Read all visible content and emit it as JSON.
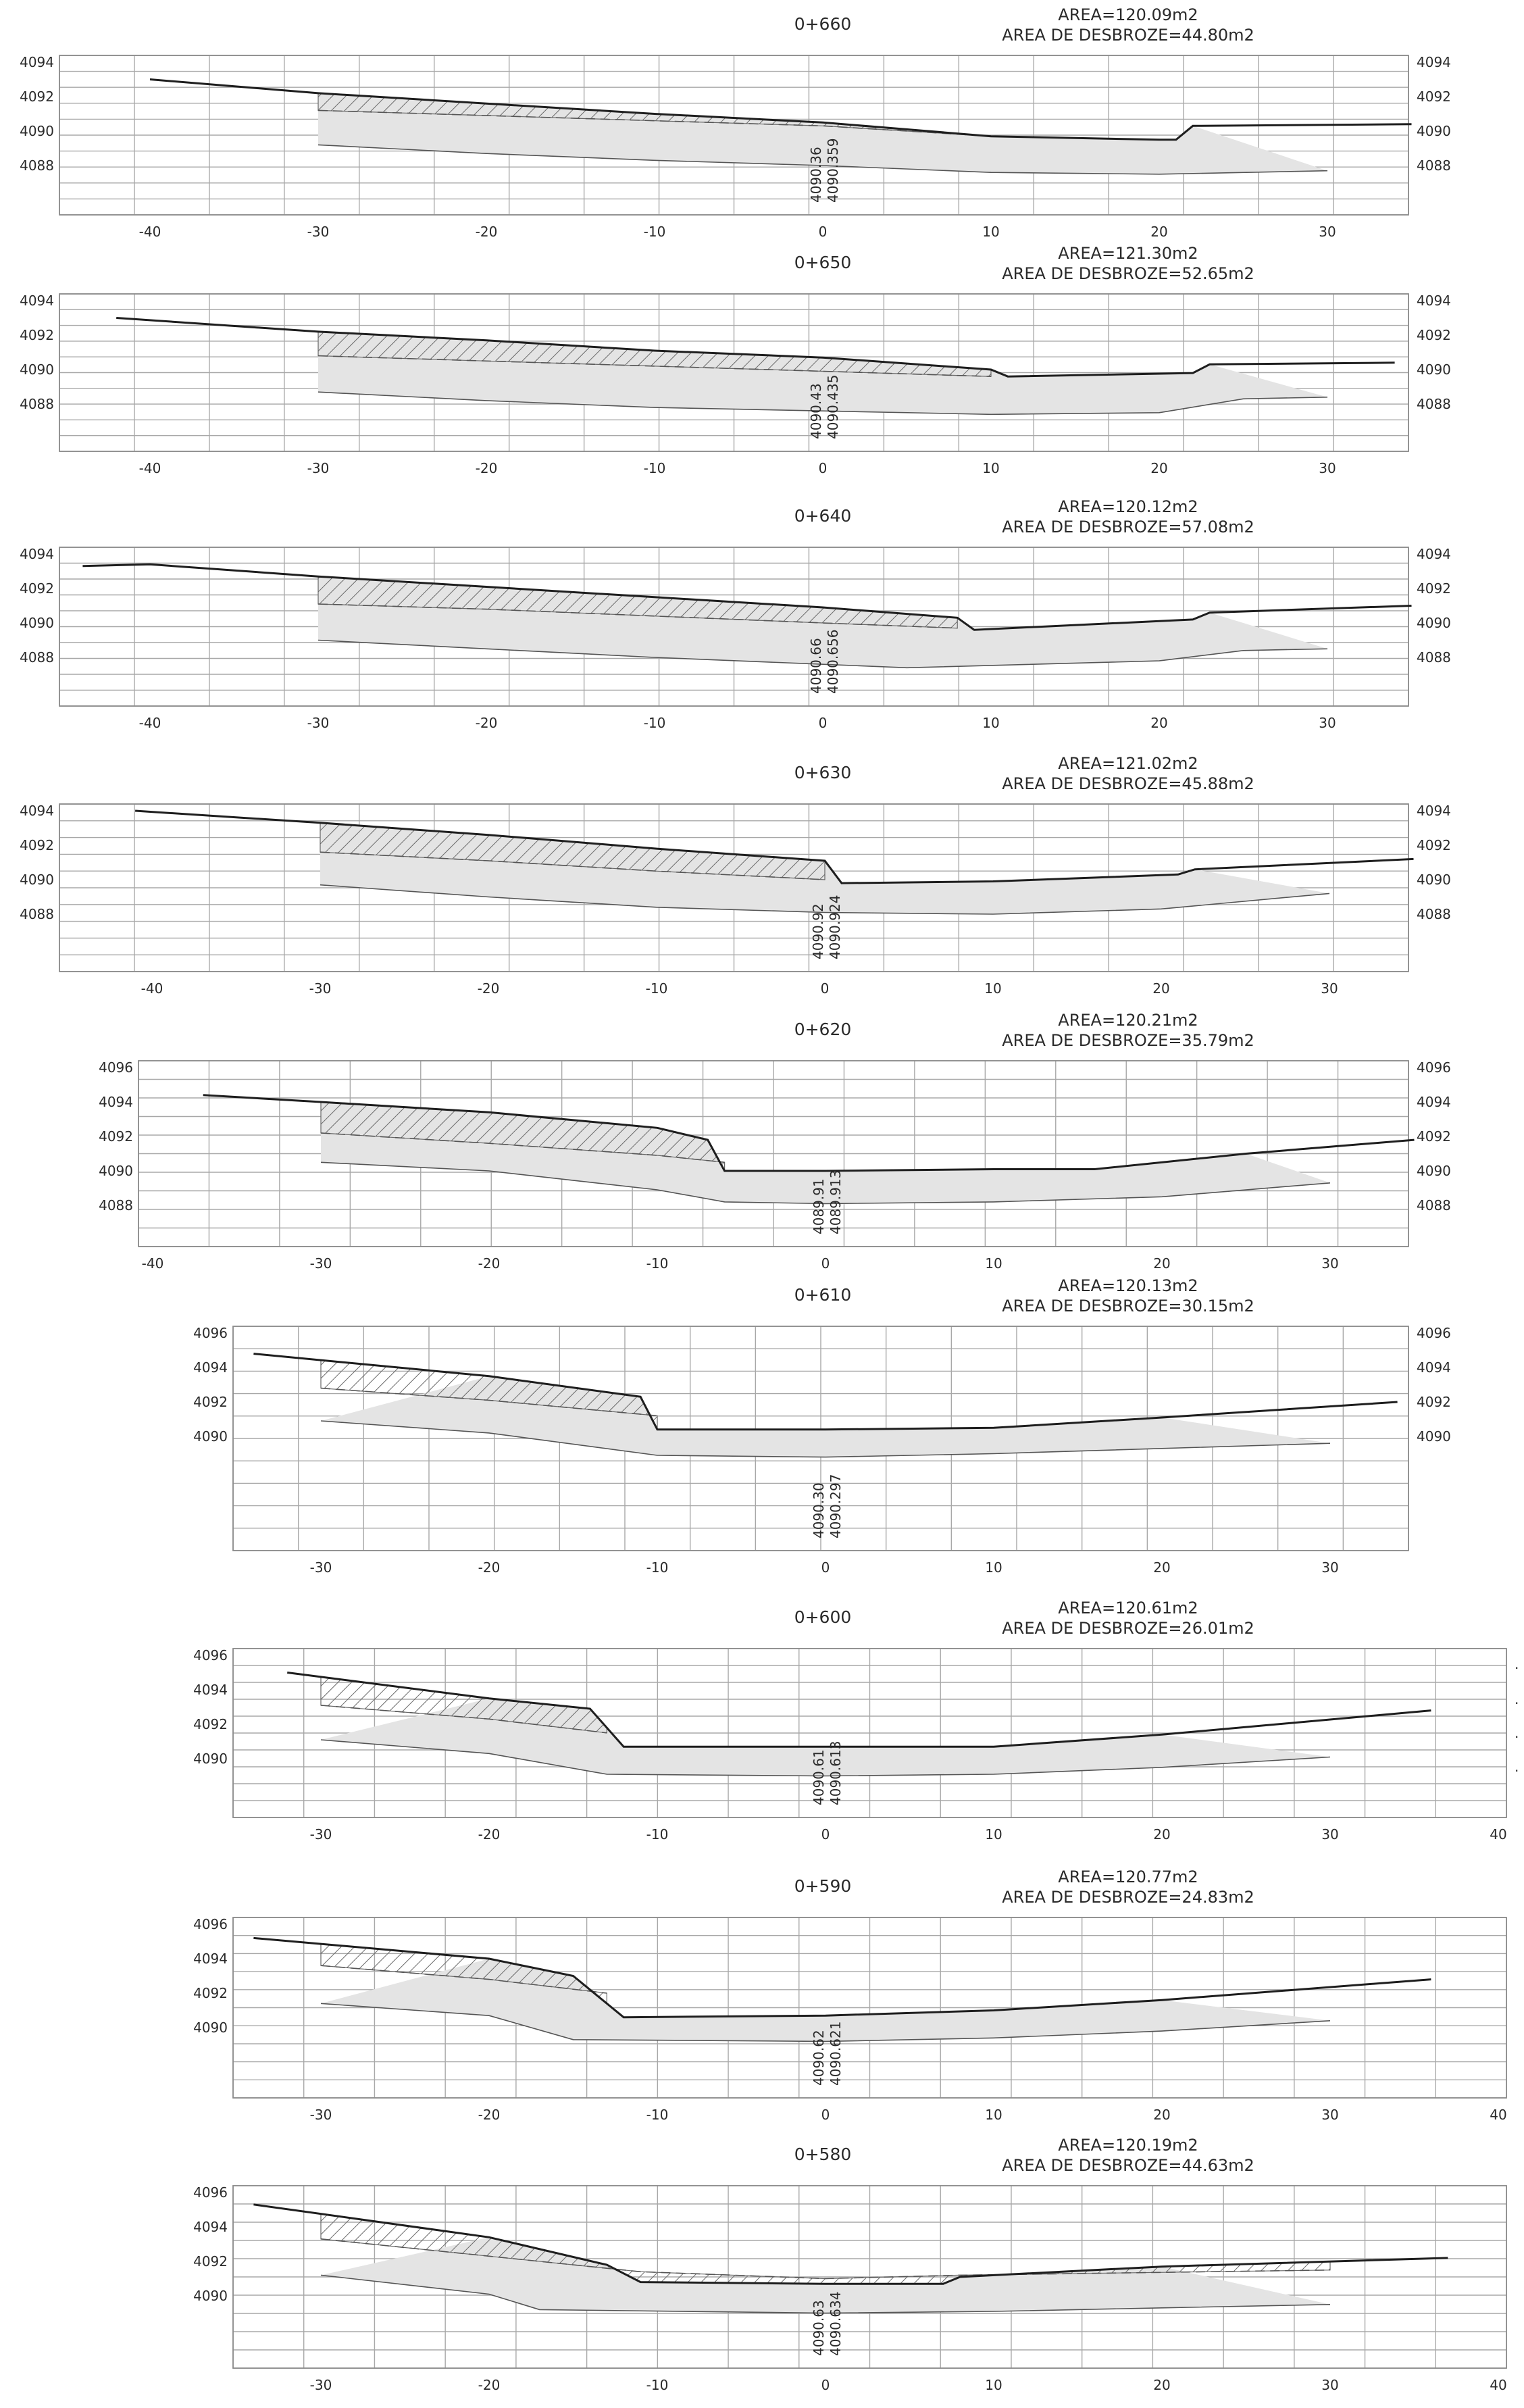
{
  "sections": [
    {
      "station": "0+660",
      "area": "AREA=120.09m2",
      "desbroze": "AREA DE DESBROZE=44.80m2",
      "xmin": -40,
      "ylabels": [
        "4094",
        "4092",
        "4090",
        "4088"
      ],
      "rlabels": [
        "4094",
        "4092",
        "4090",
        "4088"
      ],
      "xticks": [
        "-40",
        "-30",
        "-20",
        "-10",
        "0",
        "10",
        "20",
        "30"
      ],
      "elev1": "4090.36",
      "elev2": "4090.359",
      "ground": [
        [
          -40,
          4093
        ],
        [
          -30,
          4092.2
        ],
        [
          -20,
          4091.6
        ],
        [
          -10,
          4091
        ],
        [
          0,
          4090.5
        ],
        [
          10,
          4089.7
        ],
        [
          20,
          4089.5
        ],
        [
          21,
          4089.5
        ],
        [
          22,
          4090.3
        ],
        [
          35,
          4090.4
        ]
      ],
      "subgrade": [
        [
          -30,
          4089.2
        ],
        [
          -20,
          4088.7
        ],
        [
          -10,
          4088.3
        ],
        [
          0,
          4088
        ],
        [
          10,
          4087.6
        ],
        [
          20,
          4087.5
        ],
        [
          30,
          4087.7
        ]
      ],
      "cut": [
        [
          -30,
          4091.2
        ],
        [
          -20,
          4090.9
        ],
        [
          -10,
          4090.6
        ],
        [
          0,
          4090.3
        ],
        [
          10,
          4089.7
        ]
      ]
    },
    {
      "station": "0+650",
      "area": "AREA=121.30m2",
      "desbroze": "AREA DE DESBROZE=52.65m2",
      "xmin": -42,
      "ylabels": [
        "4094",
        "4092",
        "4090",
        "4088"
      ],
      "rlabels": [
        "4094",
        "4092",
        "4090",
        "4088"
      ],
      "xticks": [
        "-40",
        "-30",
        "-20",
        "-10",
        "0",
        "10",
        "20",
        "30"
      ],
      "elev1": "4090.43",
      "elev2": "4090.435",
      "ground": [
        [
          -42,
          4093
        ],
        [
          -30,
          4092.2
        ],
        [
          -20,
          4091.7
        ],
        [
          -10,
          4091.1
        ],
        [
          0,
          4090.7
        ],
        [
          10,
          4090
        ],
        [
          11,
          4089.6
        ],
        [
          22,
          4089.8
        ],
        [
          23,
          4090.3
        ],
        [
          34,
          4090.4
        ]
      ],
      "subgrade": [
        [
          -30,
          4088.7
        ],
        [
          -20,
          4088.2
        ],
        [
          -10,
          4087.8
        ],
        [
          0,
          4087.6
        ],
        [
          10,
          4087.4
        ],
        [
          20,
          4087.5
        ],
        [
          25,
          4088.3
        ],
        [
          30,
          4088.4
        ]
      ],
      "cut": [
        [
          -30,
          4090.8
        ],
        [
          -20,
          4090.5
        ],
        [
          -10,
          4090.2
        ],
        [
          0,
          4089.9
        ],
        [
          10,
          4089.6
        ]
      ]
    },
    {
      "station": "0+640",
      "area": "AREA=120.12m2",
      "desbroze": "AREA DE DESBROZE=57.08m2",
      "xmin": -44,
      "ylabels": [
        "4094",
        "4092",
        "4090",
        "4088"
      ],
      "rlabels": [
        "4094",
        "4092",
        "4090",
        "4088"
      ],
      "xticks": [
        "-40",
        "-30",
        "-20",
        "-10",
        "0",
        "10",
        "20",
        "30"
      ],
      "elev1": "4090.66",
      "elev2": "4090.656",
      "ground": [
        [
          -44,
          4093.3
        ],
        [
          -40,
          4093.4
        ],
        [
          -30,
          4092.7
        ],
        [
          -20,
          4092.1
        ],
        [
          -10,
          4091.5
        ],
        [
          0,
          4090.9
        ],
        [
          8,
          4090.3
        ],
        [
          9,
          4089.6
        ],
        [
          22,
          4090.2
        ],
        [
          23,
          4090.6
        ],
        [
          35,
          4091
        ]
      ],
      "subgrade": [
        [
          -30,
          4089
        ],
        [
          -20,
          4088.5
        ],
        [
          -10,
          4088
        ],
        [
          0,
          4087.6
        ],
        [
          5,
          4087.4
        ],
        [
          20,
          4087.8
        ],
        [
          25,
          4088.4
        ],
        [
          30,
          4088.5
        ]
      ],
      "cut": [
        [
          -30,
          4091.1
        ],
        [
          -20,
          4090.8
        ],
        [
          -10,
          4090.4
        ],
        [
          0,
          4090
        ],
        [
          8,
          4089.7
        ]
      ]
    },
    {
      "station": "0+630",
      "area": "AREA=121.02m2",
      "desbroze": "AREA DE DESBROZE=45.88m2",
      "xmin": -44,
      "ylabels": [
        "4094",
        "4092",
        "4090",
        "4088"
      ],
      "rlabels": [
        "4094",
        "4092",
        "4090",
        "4088"
      ],
      "xticks": [
        "-40",
        "-30",
        "-20",
        "-10",
        "0",
        "10",
        "20",
        "30"
      ],
      "elev1": "4090.92",
      "elev2": "4090.924",
      "ground": [
        [
          -41,
          4094
        ],
        [
          -30,
          4093.3
        ],
        [
          -20,
          4092.6
        ],
        [
          -10,
          4091.8
        ],
        [
          0,
          4091.1
        ],
        [
          1,
          4089.8
        ],
        [
          10,
          4089.9
        ],
        [
          21,
          4090.3
        ],
        [
          22,
          4090.6
        ],
        [
          35,
          4091.2
        ]
      ],
      "subgrade": [
        [
          -30,
          4089.7
        ],
        [
          -20,
          4089
        ],
        [
          -10,
          4088.4
        ],
        [
          0,
          4088.1
        ],
        [
          10,
          4088
        ],
        [
          20,
          4088.3
        ],
        [
          30,
          4089.2
        ]
      ],
      "cut": [
        [
          -30,
          4091.6
        ],
        [
          -20,
          4091.1
        ],
        [
          -10,
          4090.5
        ],
        [
          0,
          4090
        ]
      ]
    },
    {
      "station": "0+620",
      "area": "AREA=120.21m2",
      "desbroze": "AREA DE DESBROZE=35.79m2",
      "xmin": -40,
      "ylabels": [
        "4096",
        "4094",
        "4092",
        "4090",
        "4088"
      ],
      "rlabels": [
        "4096",
        "4094",
        "4092",
        "4090",
        "4088"
      ],
      "xticks": [
        "-40",
        "-30",
        "-20",
        "-10",
        "0",
        "10",
        "20",
        "30"
      ],
      "elev1": "4089.91",
      "elev2": "4089.913",
      "ground": [
        [
          -37,
          4094.4
        ],
        [
          -30,
          4094
        ],
        [
          -20,
          4093.4
        ],
        [
          -10,
          4092.5
        ],
        [
          -7,
          4091.8
        ],
        [
          -6,
          4090
        ],
        [
          0,
          4090
        ],
        [
          10,
          4090.1
        ],
        [
          16,
          4090.1
        ],
        [
          25,
          4091
        ],
        [
          35,
          4091.8
        ]
      ],
      "subgrade": [
        [
          -30,
          4090.5
        ],
        [
          -20,
          4090
        ],
        [
          -10,
          4088.9
        ],
        [
          -6,
          4088.2
        ],
        [
          0,
          4088.1
        ],
        [
          10,
          4088.2
        ],
        [
          20,
          4088.5
        ],
        [
          30,
          4089.3
        ]
      ],
      "cut": [
        [
          -30,
          4092.2
        ],
        [
          -20,
          4091.6
        ],
        [
          -10,
          4090.9
        ],
        [
          -6,
          4090.5
        ]
      ]
    },
    {
      "station": "0+610",
      "area": "AREA=120.13m2",
      "desbroze": "AREA DE DESBROZE=30.15m2",
      "xmin": -36,
      "ylabels": [
        "4096",
        "4094",
        "4092",
        "4090"
      ],
      "rlabels": [
        "4096",
        "4094",
        "4092",
        "4090"
      ],
      "xticks": [
        "-30",
        "-20",
        "-10",
        "0",
        "10",
        "20",
        "30"
      ],
      "elev1": "4090.30",
      "elev2": "4090.297",
      "ground": [
        [
          -34,
          4094.8
        ],
        [
          -20,
          4093.5
        ],
        [
          -11,
          4092.3
        ],
        [
          -10,
          4090.4
        ],
        [
          0,
          4090.4
        ],
        [
          10,
          4090.5
        ],
        [
          20,
          4091.1
        ],
        [
          34,
          4092
        ]
      ],
      "subgrade": [
        [
          -30,
          4090.9
        ],
        [
          -20,
          4090.2
        ],
        [
          -10,
          4088.9
        ],
        [
          0,
          4088.8
        ],
        [
          10,
          4089
        ],
        [
          20,
          4089.3
        ],
        [
          30,
          4089.6
        ]
      ],
      "cut": [
        [
          -30,
          4092.8
        ],
        [
          -20,
          4092.1
        ],
        [
          -10,
          4091.2
        ]
      ]
    },
    {
      "station": "0+600",
      "area": "AREA=120.61m2",
      "desbroze": "AREA DE DESBROZE=26.01m2",
      "xmin": -36,
      "ylabels": [
        "4096",
        "4094",
        "4092",
        "4090"
      ],
      "rlabels": [],
      "xticks": [
        "-30",
        "-20",
        "-10",
        "0",
        "10",
        "20",
        "30",
        "40"
      ],
      "elev1": "4090.61",
      "elev2": "4090.613",
      "ground": [
        [
          -32,
          4095
        ],
        [
          -20,
          4093.5
        ],
        [
          -14,
          4092.9
        ],
        [
          -12,
          4090.7
        ],
        [
          0,
          4090.7
        ],
        [
          10,
          4090.7
        ],
        [
          20,
          4091.4
        ],
        [
          36,
          4092.8
        ]
      ],
      "subgrade": [
        [
          -30,
          4091.1
        ],
        [
          -20,
          4090.3
        ],
        [
          -13,
          4089.1
        ],
        [
          0,
          4089
        ],
        [
          10,
          4089.1
        ],
        [
          20,
          4089.5
        ],
        [
          30,
          4090.1
        ]
      ],
      "cut": [
        [
          -30,
          4093.1
        ],
        [
          -20,
          4092.3
        ],
        [
          -13,
          4091.5
        ]
      ]
    },
    {
      "station": "0+590",
      "area": "AREA=120.77m2",
      "desbroze": "AREA DE DESBROZE=24.83m2",
      "xmin": -36,
      "ylabels": [
        "4096",
        "4094",
        "4092",
        "4090"
      ],
      "rlabels": [],
      "xticks": [
        "-30",
        "-20",
        "-10",
        "0",
        "10",
        "20",
        "30",
        "40"
      ],
      "elev1": "4090.62",
      "elev2": "4090.621",
      "ground": [
        [
          -34,
          4095.2
        ],
        [
          -20,
          4094
        ],
        [
          -15,
          4093
        ],
        [
          -12,
          4090.6
        ],
        [
          0,
          4090.7
        ],
        [
          10,
          4091
        ],
        [
          20,
          4091.6
        ],
        [
          36,
          4092.8
        ]
      ],
      "subgrade": [
        [
          -30,
          4091.4
        ],
        [
          -20,
          4090.7
        ],
        [
          -15,
          4089.3
        ],
        [
          0,
          4089.2
        ],
        [
          10,
          4089.4
        ],
        [
          20,
          4089.8
        ],
        [
          30,
          4090.4
        ]
      ],
      "cut": [
        [
          -30,
          4093.6
        ],
        [
          -20,
          4092.8
        ],
        [
          -13,
          4092
        ]
      ]
    },
    {
      "station": "0+580",
      "area": "AREA=120.19m2",
      "desbroze": "AREA DE DESBROZE=44.63m2",
      "xmin": -36,
      "ylabels": [
        "4096",
        "4094",
        "4092",
        "4090"
      ],
      "rlabels": [],
      "xticks": [
        "-30",
        "-20",
        "-10",
        "0",
        "10",
        "20",
        "30",
        "40"
      ],
      "elev1": "4090.63",
      "elev2": "4090.634",
      "ground": [
        [
          -34,
          4095.3
        ],
        [
          -20,
          4093.4
        ],
        [
          -13,
          4091.8
        ],
        [
          -11,
          4090.8
        ],
        [
          0,
          4090.7
        ],
        [
          7,
          4090.7
        ],
        [
          8,
          4091.1
        ],
        [
          20,
          4091.7
        ],
        [
          37,
          4092.2
        ]
      ],
      "subgrade": [
        [
          -30,
          4091.2
        ],
        [
          -20,
          4090.1
        ],
        [
          -17,
          4089.2
        ],
        [
          0,
          4089
        ],
        [
          10,
          4089.1
        ],
        [
          20,
          4089.3
        ],
        [
          30,
          4089.5
        ]
      ],
      "cut": [
        [
          -30,
          4093.3
        ],
        [
          -20,
          4092.3
        ],
        [
          -11,
          4091.4
        ],
        [
          0,
          4091
        ],
        [
          8,
          4091.2
        ],
        [
          30,
          4091.5
        ]
      ]
    }
  ],
  "stray_marks": [
    ".",
    ".",
    ".",
    "."
  ]
}
